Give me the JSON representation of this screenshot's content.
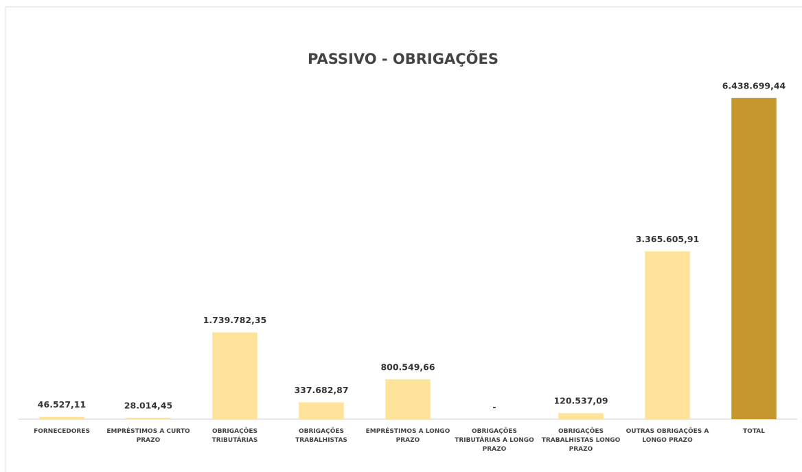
{
  "chart_data": {
    "type": "bar",
    "title": "PASSIVO - OBRIGAÇÕES",
    "categories": [
      "FORNECEDORES",
      "EMPRÉSTIMOS A CURTO PRAZO",
      "OBRIGAÇÕES TRIBUTÁRIAS",
      "OBRIGAÇÕES TRABALHISTAS",
      "EMPRÉSTIMOS A LONGO PRAZO",
      "OBRIGAÇÕES TRIBUTÁRIAS A LONGO PRAZO",
      "OBRIGAÇÕES TRABALHISTAS LONGO PRAZO",
      "OUTRAS OBRIGAÇÕES A LONGO PRAZO",
      "TOTAL"
    ],
    "values": [
      46527.11,
      28014.45,
      1739782.35,
      337682.87,
      800549.66,
      0,
      120537.09,
      3365605.91,
      6438699.44
    ],
    "value_labels": [
      "46.527,11",
      "28.014,45",
      "1.739.782,35",
      "337.682,87",
      "800.549,66",
      "-",
      "120.537,09",
      "3.365.605,91",
      "6.438.699,44"
    ],
    "colors": [
      "#fde49a",
      "#fde49a",
      "#fde49a",
      "#fde49a",
      "#fde49a",
      "#fde49a",
      "#fde49a",
      "#fde49a",
      "#c4972f"
    ],
    "ylim": [
      0,
      7000000
    ]
  }
}
